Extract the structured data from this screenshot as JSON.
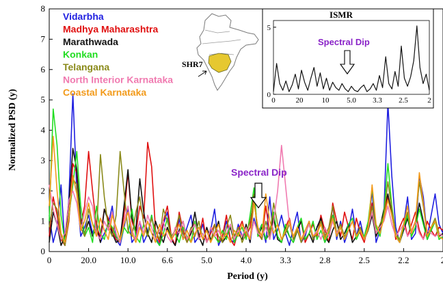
{
  "chart_data": [
    {
      "type": "line",
      "ylabel": "Normalized  PSD (y)",
      "xlabel": "Period (y)",
      "ylim": [
        0,
        8
      ],
      "yticks": [
        0,
        1,
        2,
        3,
        4,
        5,
        6,
        7,
        8
      ],
      "xtick_labels": [
        "0",
        "20.0",
        "10.0",
        "6.6",
        "5.0",
        "4.0",
        "3.3",
        "2.8",
        "2.5",
        "2.2",
        "2"
      ],
      "annotation": "Spectral Dip",
      "legend_placement": "top-left",
      "grid": false,
      "x": [
        0,
        0.5,
        1,
        1.5,
        2,
        2.5,
        3,
        3.5,
        4,
        4.5,
        5,
        5.5,
        6,
        6.5,
        7,
        7.5,
        8,
        8.5,
        9,
        9.5,
        10,
        10.5,
        11,
        11.5,
        12,
        12.5,
        13,
        13.5,
        14,
        14.5,
        15,
        15.5,
        16,
        16.5,
        17,
        17.5,
        18,
        18.5,
        19,
        19.5,
        20,
        20.5,
        21,
        21.5,
        22,
        22.5,
        23,
        23.5,
        24,
        24.5,
        25,
        25.5,
        26,
        26.5,
        27,
        27.5,
        28,
        28.5,
        29,
        29.5,
        30,
        30.5,
        31,
        31.5,
        32,
        32.5,
        33,
        33.5,
        34,
        34.5,
        35,
        35.5,
        36,
        36.5,
        37,
        37.5,
        38,
        38.5,
        39,
        39.5,
        40,
        40.5,
        41,
        41.5,
        42,
        42.5,
        43,
        43.5,
        44,
        44.5,
        45,
        45.5,
        46,
        46.5,
        47,
        47.5,
        48,
        48.5,
        49,
        49.5,
        50
      ],
      "series": [
        {
          "name": "Vidarbha",
          "color": "#1f1fe0",
          "values": [
            1.2,
            0.3,
            0.8,
            2.2,
            0.2,
            1.8,
            5.2,
            2.0,
            0.5,
            0.8,
            1.2,
            0.6,
            1.0,
            0.3,
            0.6,
            0.9,
            1.5,
            0.4,
            0.2,
            0.8,
            1.4,
            0.3,
            0.5,
            1.0,
            0.3,
            0.6,
            1.2,
            0.5,
            0.2,
            0.9,
            1.3,
            0.4,
            0.2,
            1.1,
            0.4,
            0.8,
            1.2,
            0.3,
            0.5,
            0.9,
            0.3,
            0.7,
            1.4,
            0.2,
            0.5,
            1.0,
            0.4,
            0.3,
            0.9,
            0.5,
            0.8,
            0.3,
            1.1,
            0.6,
            0.9,
            0.3,
            1.8,
            0.4,
            0.7,
            1.2,
            0.6,
            0.2,
            0.8,
            1.3,
            0.3,
            0.5,
            1.0,
            0.4,
            0.8,
            1.1,
            0.3,
            0.6,
            1.5,
            0.4,
            1.0,
            0.3,
            0.7,
            1.4,
            0.5,
            1.0,
            0.4,
            0.8,
            2.0,
            0.3,
            0.7,
            1.3,
            4.9,
            2.5,
            0.8,
            0.3,
            0.9,
            1.8,
            0.4,
            0.6,
            2.5,
            1.8,
            0.5,
            1.2,
            1.9,
            0.9,
            0.6
          ]
        },
        {
          "name": "Madhya Maharashtra",
          "color": "#e01010",
          "values": [
            0.5,
            1.8,
            1.2,
            0.4,
            0.2,
            1.0,
            2.9,
            2.6,
            0.9,
            1.5,
            3.3,
            2.0,
            0.8,
            0.5,
            1.4,
            1.1,
            0.7,
            0.4,
            0.3,
            1.2,
            2.6,
            1.0,
            0.6,
            1.5,
            1.1,
            3.6,
            2.8,
            0.7,
            0.3,
            1.0,
            1.5,
            0.5,
            0.2,
            1.3,
            0.7,
            0.3,
            0.6,
            1.0,
            0.4,
            1.1,
            0.3,
            0.6,
            0.9,
            0.3,
            0.5,
            1.2,
            0.4,
            0.2,
            0.7,
            1.0,
            0.5,
            0.8,
            1.9,
            0.6,
            0.4,
            1.5,
            0.6,
            1.2,
            0.5,
            0.3,
            0.8,
            1.1,
            0.4,
            0.7,
            1.0,
            0.3,
            0.6,
            0.9,
            0.5,
            1.2,
            0.7,
            0.3,
            1.6,
            1.0,
            0.5,
            1.3,
            0.8,
            0.4,
            1.1,
            0.6,
            0.3,
            0.9,
            1.6,
            0.5,
            0.8,
            1.2,
            1.8,
            1.3,
            0.4,
            0.8,
            1.1,
            0.5,
            0.9,
            1.3,
            0.7,
            0.4,
            1.0,
            0.7,
            0.5,
            0.8,
            0.7
          ]
        },
        {
          "name": "Marathwada",
          "color": "#111111",
          "values": [
            0.3,
            1.3,
            0.9,
            0.2,
            0.5,
            1.6,
            3.4,
            2.7,
            1.0,
            0.6,
            1.0,
            0.5,
            0.8,
            0.3,
            1.4,
            1.0,
            0.6,
            0.3,
            0.4,
            1.5,
            2.7,
            1.1,
            0.7,
            2.4,
            1.3,
            0.6,
            0.3,
            1.0,
            0.6,
            0.3,
            0.8,
            0.4,
            0.2,
            0.7,
            1.0,
            0.4,
            0.6,
            1.3,
            0.5,
            0.2,
            0.8,
            0.4,
            0.6,
            1.0,
            0.3,
            0.5,
            0.8,
            0.3,
            0.6,
            0.4,
            0.9,
            0.3,
            1.8,
            0.5,
            0.8,
            0.4,
            0.6,
            1.1,
            0.4,
            0.3,
            0.8,
            0.5,
            0.3,
            0.7,
            1.0,
            0.4,
            0.6,
            0.3,
            0.8,
            1.1,
            0.5,
            0.3,
            0.7,
            1.0,
            0.4,
            0.6,
            0.9,
            0.3,
            0.5,
            0.8,
            0.4,
            0.7,
            1.2,
            0.5,
            0.8,
            1.4,
            1.9,
            1.2,
            0.5,
            0.3,
            0.7,
            1.1,
            0.5,
            0.8,
            1.6,
            1.0,
            0.4,
            0.7,
            1.0,
            0.5,
            0.6
          ]
        },
        {
          "name": "Konkan",
          "color": "#22dd22",
          "values": [
            1.0,
            4.7,
            3.5,
            1.2,
            0.3,
            1.2,
            2.2,
            3.3,
            1.5,
            0.5,
            0.8,
            0.3,
            1.5,
            0.6,
            0.4,
            1.0,
            0.8,
            0.5,
            0.3,
            0.8,
            0.6,
            1.4,
            0.5,
            0.3,
            0.9,
            0.5,
            1.2,
            0.4,
            0.2,
            0.6,
            1.1,
            0.4,
            0.6,
            0.3,
            0.8,
            0.5,
            0.3,
            1.0,
            0.4,
            0.6,
            0.3,
            0.8,
            0.5,
            0.3,
            0.7,
            0.4,
            0.9,
            0.3,
            0.6,
            0.8,
            0.4,
            1.2,
            2.1,
            0.5,
            0.9,
            0.4,
            0.7,
            1.3,
            0.5,
            0.3,
            0.9,
            0.5,
            0.3,
            0.8,
            1.1,
            0.4,
            0.6,
            1.0,
            0.4,
            0.7,
            0.3,
            0.6,
            1.2,
            0.5,
            0.8,
            0.4,
            0.9,
            1.1,
            0.4,
            0.7,
            0.5,
            1.0,
            2.1,
            0.8,
            0.5,
            1.3,
            2.9,
            1.5,
            0.6,
            0.3,
            0.8,
            1.2,
            0.5,
            0.8,
            1.4,
            0.9,
            0.4,
            0.7,
            1.0,
            0.4,
            0.5
          ]
        },
        {
          "name": "Telangana",
          "color": "#8a8a1a",
          "values": [
            0.8,
            1.6,
            1.4,
            0.5,
            0.2,
            1.1,
            2.4,
            2.2,
            0.8,
            0.5,
            1.4,
            0.9,
            0.6,
            3.2,
            1.8,
            0.8,
            0.5,
            1.2,
            3.3,
            2.0,
            0.7,
            0.5,
            1.3,
            1.8,
            0.9,
            0.5,
            1.1,
            0.7,
            0.4,
            1.4,
            1.0,
            0.5,
            0.7,
            1.2,
            0.6,
            0.3,
            0.8,
            0.5,
            1.0,
            0.4,
            0.7,
            0.3,
            0.9,
            0.5,
            0.3,
            0.8,
            1.2,
            0.5,
            0.8,
            0.3,
            0.6,
            1.0,
            1.7,
            0.7,
            0.4,
            1.0,
            0.5,
            1.6,
            0.9,
            0.4,
            0.6,
            0.9,
            0.4,
            0.7,
            0.3,
            0.6,
            0.9,
            0.4,
            0.6,
            1.0,
            0.5,
            0.8,
            1.5,
            0.6,
            0.9,
            0.5,
            0.7,
            1.0,
            0.5,
            0.8,
            0.4,
            0.7,
            1.5,
            0.6,
            0.9,
            1.2,
            2.3,
            1.4,
            0.6,
            0.4,
            0.9,
            1.3,
            0.6,
            1.0,
            2.3,
            1.5,
            0.5,
            0.8,
            1.1,
            0.6,
            0.5
          ]
        },
        {
          "name": "North Interior Karnataka",
          "color": "#f07ab0",
          "values": [
            2.2,
            1.4,
            0.9,
            0.4,
            0.6,
            1.7,
            2.0,
            1.6,
            0.7,
            1.3,
            1.8,
            1.5,
            0.6,
            0.4,
            1.0,
            0.7,
            1.3,
            0.6,
            0.3,
            1.0,
            1.5,
            0.7,
            0.4,
            1.0,
            0.6,
            1.2,
            0.8,
            0.4,
            0.7,
            1.0,
            0.5,
            0.3,
            0.8,
            0.6,
            1.0,
            0.4,
            0.7,
            0.9,
            0.4,
            0.6,
            0.3,
            0.8,
            0.5,
            0.7,
            0.4,
            0.6,
            0.9,
            0.4,
            0.7,
            0.5,
            0.8,
            0.4,
            1.0,
            0.6,
            0.5,
            0.8,
            0.4,
            1.0,
            2.0,
            3.5,
            2.2,
            0.9,
            0.5,
            0.8,
            0.4,
            0.6,
            0.9,
            0.5,
            0.7,
            0.4,
            0.8,
            0.5,
            1.0,
            0.6,
            0.8,
            0.4,
            0.7,
            1.0,
            0.5,
            0.7,
            0.4,
            0.8,
            1.3,
            0.6,
            0.8,
            1.0,
            1.5,
            0.9,
            0.5,
            0.7,
            0.9,
            0.5,
            0.7,
            1.0,
            0.6,
            0.4,
            0.7,
            0.6,
            0.5,
            0.6,
            0.5
          ]
        },
        {
          "name": "Coastal Karnataka",
          "color": "#f29a1a",
          "values": [
            1.5,
            3.8,
            2.0,
            0.6,
            0.3,
            1.2,
            2.5,
            1.9,
            0.7,
            1.0,
            1.6,
            0.9,
            0.5,
            1.1,
            0.7,
            0.4,
            1.2,
            0.8,
            0.4,
            0.9,
            1.3,
            0.6,
            0.3,
            0.8,
            0.5,
            1.0,
            0.6,
            0.3,
            0.9,
            0.5,
            0.7,
            0.4,
            0.6,
            0.9,
            0.4,
            0.7,
            0.3,
            0.6,
            0.8,
            0.4,
            0.7,
            0.3,
            0.6,
            0.9,
            0.4,
            0.6,
            0.3,
            0.7,
            0.5,
            0.9,
            0.6,
            0.4,
            1.6,
            0.8,
            0.5,
            1.9,
            1.0,
            0.6,
            0.9,
            0.4,
            0.7,
            1.0,
            0.5,
            0.8,
            0.4,
            0.7,
            1.0,
            0.5,
            0.6,
            0.9,
            0.4,
            0.7,
            1.1,
            0.5,
            0.8,
            0.4,
            0.7,
            1.0,
            0.5,
            0.7,
            0.4,
            0.8,
            2.2,
            0.9,
            0.6,
            1.1,
            1.7,
            1.2,
            0.5,
            0.3,
            0.9,
            1.5,
            0.6,
            1.0,
            2.6,
            1.6,
            0.5,
            0.8,
            1.0,
            0.5,
            0.4
          ]
        }
      ]
    },
    {
      "type": "line",
      "title": "ISMR",
      "annotation": "Spectral Dip",
      "yticks": [
        0,
        5
      ],
      "ylim": [
        0,
        5.5
      ],
      "xtick_labels": [
        "0",
        "20",
        "10",
        "5.0",
        "3.3",
        "2.5",
        "2"
      ],
      "x": [
        0,
        1,
        2,
        3,
        4,
        5,
        6,
        7,
        8,
        9,
        10,
        11,
        12,
        13,
        14,
        15,
        16,
        17,
        18,
        19,
        20,
        21,
        22,
        23,
        24,
        25,
        26,
        27,
        28,
        29,
        30,
        31,
        32,
        33,
        34,
        35,
        36,
        37,
        38,
        39,
        40,
        41,
        42,
        43,
        44,
        45,
        46,
        47,
        48,
        49,
        50
      ],
      "series": [
        {
          "name": "ISMR",
          "color": "#111111",
          "values": [
            0.2,
            2.3,
            0.8,
            0.3,
            1.0,
            0.2,
            0.7,
            1.5,
            0.4,
            1.8,
            0.9,
            0.3,
            1.2,
            2.0,
            0.6,
            1.6,
            0.4,
            1.2,
            0.3,
            0.9,
            0.5,
            0.3,
            0.8,
            0.4,
            0.2,
            0.6,
            0.3,
            0.2,
            0.5,
            0.7,
            0.2,
            0.4,
            0.8,
            0.3,
            1.4,
            0.5,
            2.8,
            0.8,
            0.4,
            1.7,
            0.6,
            3.6,
            1.2,
            0.6,
            1.3,
            2.5,
            5.1,
            2.0,
            0.8,
            1.5,
            0.3
          ]
        }
      ]
    }
  ],
  "map": {
    "label": "SHR7",
    "outline_color": "#7a7a7a",
    "region_fill": "#e6c830"
  }
}
